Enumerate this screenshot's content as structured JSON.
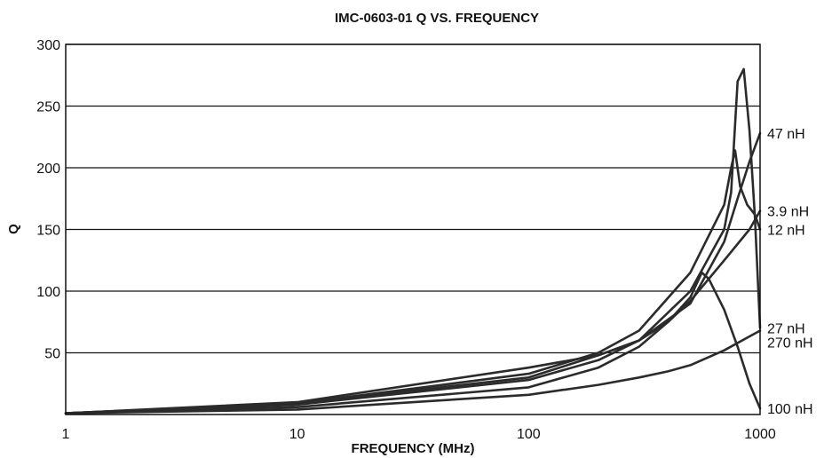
{
  "chart_data": {
    "type": "line",
    "title": "IMC-0603-01 Q VS. FREQUENCY",
    "xlabel": "FREQUENCY (MHz)",
    "ylabel": "Q",
    "x_scale": "log",
    "xlim": [
      1,
      1000
    ],
    "ylim": [
      0,
      300
    ],
    "x_ticks": [
      "1",
      "10",
      "100",
      "1000"
    ],
    "y_ticks": [
      "50",
      "100",
      "150",
      "200",
      "250",
      "300"
    ],
    "grid": "horizontal",
    "legend": "labels at right end of series",
    "series": [
      {
        "name": "27 nH",
        "x": [
          1,
          10,
          100,
          200,
          300,
          500,
          700,
          750,
          800,
          850,
          900,
          950,
          1000
        ],
        "y": [
          1,
          9,
          30,
          48,
          60,
          100,
          150,
          180,
          270,
          280,
          230,
          160,
          70
        ]
      },
      {
        "name": "12 nH",
        "x": [
          1,
          10,
          100,
          200,
          300,
          500,
          700,
          750,
          780,
          820,
          880,
          950,
          1000
        ],
        "y": [
          1,
          9,
          33,
          50,
          68,
          115,
          170,
          200,
          214,
          185,
          170,
          162,
          150
        ]
      },
      {
        "name": "47 nH",
        "x": [
          1,
          10,
          100,
          200,
          300,
          500,
          700,
          800,
          900,
          1000
        ],
        "y": [
          1,
          8,
          28,
          44,
          60,
          90,
          140,
          175,
          205,
          228
        ]
      },
      {
        "name": "3.9 nH",
        "x": [
          1,
          10,
          100,
          200,
          300,
          400,
          500,
          700,
          900,
          1000
        ],
        "y": [
          1,
          10,
          38,
          48,
          60,
          75,
          92,
          125,
          150,
          165
        ]
      },
      {
        "name": "100 nH",
        "x": [
          1,
          10,
          100,
          200,
          300,
          400,
          500,
          560,
          600,
          700,
          800,
          900,
          1000
        ],
        "y": [
          1,
          6,
          22,
          38,
          55,
          75,
          95,
          115,
          110,
          85,
          55,
          25,
          5
        ]
      },
      {
        "name": "270 nH",
        "x": [
          1,
          10,
          100,
          200,
          300,
          400,
          500,
          700,
          1000
        ],
        "y": [
          1,
          4,
          16,
          24,
          30,
          35,
          40,
          52,
          68
        ]
      }
    ]
  }
}
